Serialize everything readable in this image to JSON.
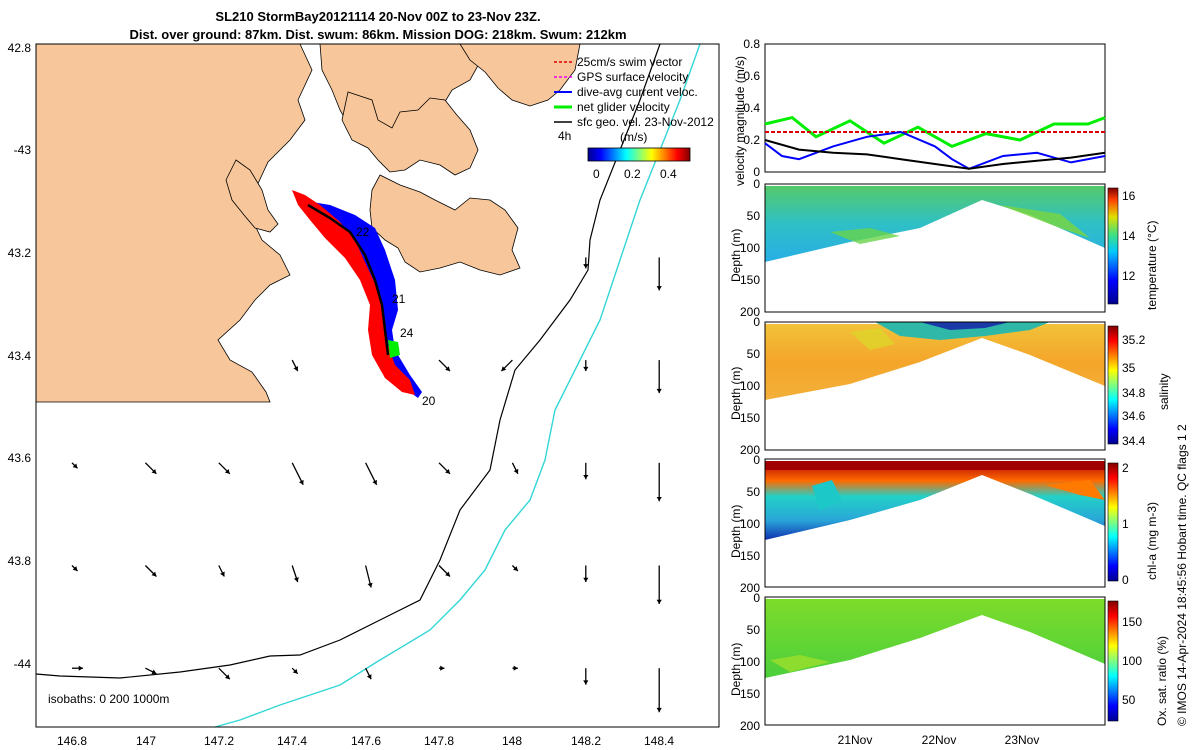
{
  "title": {
    "line1": "SL210 StormBay20121114 20-Nov 00Z to 23-Nov 23Z.",
    "line2": "Dist. over ground: 87km. Dist. swum: 86km. Mission DOG: 218km. Swum: 212km"
  },
  "credit": "© IMOS 14-Apr-2024 18:45:56 Hobart time. QC flags 1  2",
  "colors": {
    "land": "#f7c79b",
    "glider_red": "#ff0000",
    "glider_blue": "#0000ff",
    "isobath_200": "#000000",
    "isobath_1000": "#33d6d6",
    "net_green": "#00ee00",
    "swim_red": "#dd0000",
    "gps_magenta": "#ee00ee",
    "black": "#000000"
  },
  "map": {
    "lon_ticks": [
      "146.8",
      "147",
      "147.2",
      "147.4",
      "147.6",
      "147.8",
      "148",
      "148.2",
      "148.4"
    ],
    "lat_ticks": [
      "42.8",
      "-43",
      "43.2",
      "43.4",
      "43.6",
      "43.8",
      "-44"
    ],
    "track_labels": [
      "21",
      "24",
      "20",
      "22"
    ],
    "isobaths_label": "isobaths: 0   200  1000m",
    "colorbar": {
      "prefix": "4h",
      "unit": "(m/s)",
      "ticks": [
        "0",
        "0.2",
        "0.4"
      ]
    },
    "legend": [
      {
        "label": "25cm/s swim vector",
        "color": "#dd0000",
        "dashed": true
      },
      {
        "label": "GPS surface velocity",
        "color": "#ee00ee",
        "dashed": true
      },
      {
        "label": "dive-avg current veloc.",
        "color": "#0000ff",
        "dashed": false
      },
      {
        "label": "net glider velocity",
        "color": "#00ee00",
        "dashed": false
      },
      {
        "label": "sfc geo. vel. 23-Nov-2012",
        "color": "#000000",
        "dashed": false
      }
    ],
    "vector_field": [
      {
        "lon": 148.2,
        "lat": 43.2,
        "u": 0.0,
        "v": -0.1
      },
      {
        "lon": 148.4,
        "lat": 43.2,
        "u": 0.0,
        "v": -0.3
      },
      {
        "lon": 147.8,
        "lat": 43.4,
        "u": 0.1,
        "v": -0.1
      },
      {
        "lon": 148.0,
        "lat": 43.4,
        "u": -0.1,
        "v": -0.1
      },
      {
        "lon": 148.2,
        "lat": 43.4,
        "u": 0.0,
        "v": -0.1
      },
      {
        "lon": 148.4,
        "lat": 43.4,
        "u": 0.0,
        "v": -0.3
      },
      {
        "lon": 147.4,
        "lat": 43.4,
        "u": 0.05,
        "v": -0.1
      },
      {
        "lon": 146.8,
        "lat": 43.6,
        "u": 0.05,
        "v": -0.05
      },
      {
        "lon": 147.0,
        "lat": 43.6,
        "u": 0.1,
        "v": -0.1
      },
      {
        "lon": 147.2,
        "lat": 43.6,
        "u": 0.1,
        "v": -0.1
      },
      {
        "lon": 147.4,
        "lat": 43.6,
        "u": 0.1,
        "v": -0.2
      },
      {
        "lon": 147.6,
        "lat": 43.6,
        "u": 0.1,
        "v": -0.2
      },
      {
        "lon": 147.8,
        "lat": 43.6,
        "u": 0.1,
        "v": -0.1
      },
      {
        "lon": 148.0,
        "lat": 43.6,
        "u": 0.05,
        "v": -0.1
      },
      {
        "lon": 148.2,
        "lat": 43.6,
        "u": 0.0,
        "v": -0.15
      },
      {
        "lon": 148.4,
        "lat": 43.6,
        "u": 0.0,
        "v": -0.35
      },
      {
        "lon": 146.8,
        "lat": 43.8,
        "u": 0.05,
        "v": -0.05
      },
      {
        "lon": 147.0,
        "lat": 43.8,
        "u": 0.1,
        "v": -0.1
      },
      {
        "lon": 147.2,
        "lat": 43.8,
        "u": 0.05,
        "v": -0.1
      },
      {
        "lon": 147.4,
        "lat": 43.8,
        "u": 0.05,
        "v": -0.15
      },
      {
        "lon": 147.6,
        "lat": 43.8,
        "u": 0.05,
        "v": -0.2
      },
      {
        "lon": 147.8,
        "lat": 43.8,
        "u": 0.1,
        "v": -0.1
      },
      {
        "lon": 148.0,
        "lat": 43.8,
        "u": 0.05,
        "v": -0.05
      },
      {
        "lon": 148.2,
        "lat": 43.8,
        "u": 0.0,
        "v": -0.15
      },
      {
        "lon": 148.4,
        "lat": 43.8,
        "u": 0.0,
        "v": -0.35
      },
      {
        "lon": 146.8,
        "lat": 44.0,
        "u": 0.1,
        "v": 0.0
      },
      {
        "lon": 147.0,
        "lat": 44.0,
        "u": 0.1,
        "v": -0.05
      },
      {
        "lon": 147.2,
        "lat": 44.0,
        "u": 0.1,
        "v": -0.1
      },
      {
        "lon": 147.4,
        "lat": 44.0,
        "u": 0.05,
        "v": -0.05
      },
      {
        "lon": 147.6,
        "lat": 44.0,
        "u": 0.05,
        "v": -0.1
      },
      {
        "lon": 147.8,
        "lat": 44.0,
        "u": 0.05,
        "v": 0.0
      },
      {
        "lon": 148.0,
        "lat": 44.0,
        "u": 0.05,
        "v": 0.0
      },
      {
        "lon": 148.2,
        "lat": 44.0,
        "u": 0.0,
        "v": -0.15
      },
      {
        "lon": 148.4,
        "lat": 44.0,
        "u": 0.0,
        "v": -0.4
      }
    ]
  },
  "chart_data": [
    {
      "type": "line",
      "ylabel": "velocity magnitude (m/s)",
      "ylim": [
        0,
        0.8
      ],
      "yticks": [
        "0",
        "0.2",
        "0.4",
        "0.6",
        "0.8"
      ],
      "series": [
        {
          "color": "#00ee00",
          "x": [
            0,
            0.08,
            0.15,
            0.25,
            0.35,
            0.45,
            0.55,
            0.65,
            0.75,
            0.85,
            0.95,
            1
          ],
          "values": [
            0.3,
            0.34,
            0.22,
            0.32,
            0.18,
            0.28,
            0.16,
            0.24,
            0.2,
            0.3,
            0.3,
            0.34
          ]
        },
        {
          "color": "#dd0000",
          "x": [
            0,
            1
          ],
          "values": [
            0.25,
            0.25
          ]
        },
        {
          "color": "#0000ff",
          "x": [
            0,
            0.05,
            0.1,
            0.2,
            0.3,
            0.4,
            0.5,
            0.55,
            0.6,
            0.7,
            0.8,
            0.9,
            1
          ],
          "values": [
            0.18,
            0.1,
            0.08,
            0.16,
            0.22,
            0.25,
            0.16,
            0.08,
            0.02,
            0.1,
            0.12,
            0.06,
            0.1
          ]
        },
        {
          "color": "#000000",
          "x": [
            0,
            0.1,
            0.2,
            0.3,
            0.4,
            0.5,
            0.6,
            0.7,
            0.8,
            0.9,
            1
          ],
          "values": [
            0.2,
            0.14,
            0.12,
            0.11,
            0.08,
            0.05,
            0.02,
            0.05,
            0.07,
            0.09,
            0.12
          ]
        }
      ]
    },
    {
      "type": "heatmap",
      "ylabel": "Depth (m)",
      "ylim": [
        0,
        200
      ],
      "yticks": [
        "0",
        "50",
        "100",
        "150",
        "200"
      ],
      "cbar_label": "temperature (°C)",
      "cbar_ticks": [
        "16",
        "14",
        "12"
      ],
      "cbar_range": [
        10.5,
        16.5
      ]
    },
    {
      "type": "heatmap",
      "ylabel": "Depth (m)",
      "ylim": [
        0,
        200
      ],
      "yticks": [
        "0",
        "50",
        "100",
        "150",
        "200"
      ],
      "cbar_label": "salinity",
      "cbar_ticks": [
        "35.2",
        "35",
        "34.8",
        "34.6",
        "34.4"
      ],
      "cbar_range": [
        34.35,
        35.3
      ]
    },
    {
      "type": "heatmap",
      "ylabel": "Depth (m)",
      "ylim": [
        0,
        200
      ],
      "yticks": [
        "0",
        "50",
        "100",
        "150",
        "200"
      ],
      "cbar_label": "chl-a (mg m-3)",
      "cbar_ticks": [
        "2",
        "1",
        "0"
      ],
      "cbar_range": [
        0,
        2
      ]
    },
    {
      "type": "heatmap",
      "ylabel": "Depth (m)",
      "ylim": [
        0,
        200
      ],
      "yticks": [
        "0",
        "50",
        "100",
        "150",
        "200"
      ],
      "xticks": [
        "21Nov",
        "22Nov",
        "23Nov"
      ],
      "cbar_label": "Ox. sat. ratio (%)",
      "cbar_ticks": [
        "150",
        "100",
        "50"
      ],
      "cbar_range": [
        20,
        175
      ]
    }
  ]
}
